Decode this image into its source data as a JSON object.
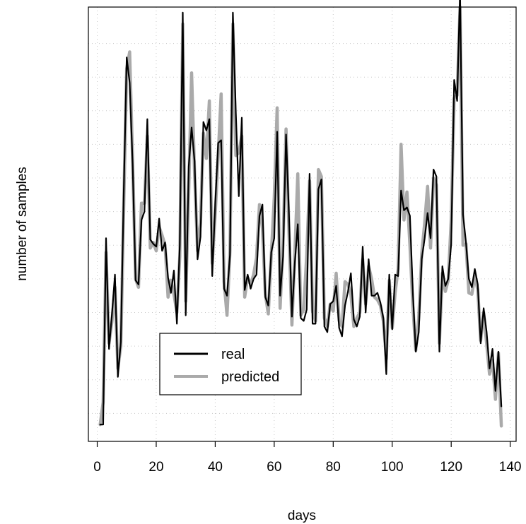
{
  "chart_data": {
    "type": "line",
    "title": "",
    "xlabel": "days",
    "ylabel": "number of samples",
    "xlim": [
      -3,
      142
    ],
    "ylim": [
      -1,
      30
    ],
    "xticks": [
      0,
      20,
      40,
      60,
      80,
      100,
      120,
      140
    ],
    "xtick_labels": [
      "0",
      "20",
      "40",
      "60",
      "80",
      "100",
      "120",
      "140"
    ],
    "yticks": [],
    "grid": true,
    "legend_position": "bottom-left",
    "series": [
      {
        "name": "real",
        "color": "#000000",
        "x": [
          1,
          2,
          3,
          4,
          5,
          6,
          7,
          8,
          9,
          10,
          11,
          12,
          13,
          14,
          15,
          16,
          17,
          18,
          19,
          20,
          21,
          22,
          23,
          24,
          25,
          26,
          27,
          28,
          29,
          30,
          31,
          32,
          33,
          34,
          35,
          36,
          37,
          38,
          39,
          40,
          41,
          42,
          43,
          44,
          45,
          46,
          47,
          48,
          49,
          50,
          51,
          52,
          53,
          54,
          55,
          56,
          57,
          58,
          59,
          60,
          61,
          62,
          63,
          64,
          65,
          66,
          67,
          68,
          69,
          70,
          71,
          72,
          73,
          74,
          75,
          76,
          77,
          78,
          79,
          80,
          81,
          82,
          83,
          84,
          85,
          86,
          87,
          88,
          89,
          90,
          91,
          92,
          93,
          94,
          95,
          96,
          97,
          98,
          99,
          100,
          101,
          102,
          103,
          104,
          105,
          106,
          107,
          108,
          109,
          110,
          111,
          112,
          113,
          114,
          115,
          116,
          117,
          118,
          119,
          120,
          121,
          122,
          123,
          124,
          125,
          126,
          127,
          128,
          129,
          130,
          131,
          132,
          133,
          134,
          135,
          136,
          137
        ],
        "values": [
          0.2,
          0.2,
          13.5,
          5.6,
          8.1,
          10.9,
          3.6,
          6.1,
          16.9,
          26.4,
          24.6,
          18.8,
          10.5,
          10.2,
          14.8,
          15.4,
          22.0,
          13.4,
          13.1,
          12.9,
          14.9,
          12.6,
          13.2,
          10.7,
          9.6,
          11.2,
          7.4,
          13.0,
          29.6,
          8.0,
          18.6,
          21.4,
          19.0,
          12.0,
          13.6,
          21.8,
          21.2,
          22.0,
          10.8,
          15.9,
          20.3,
          20.5,
          9.9,
          9.4,
          12.3,
          29.6,
          22.4,
          16.5,
          22.1,
          9.8,
          10.9,
          9.9,
          10.6,
          10.9,
          15.1,
          15.9,
          9.3,
          8.7,
          12.5,
          13.5,
          21.1,
          9.4,
          12.2,
          20.9,
          15.2,
          7.9,
          11.8,
          14.5,
          7.8,
          7.6,
          8.4,
          18.1,
          7.4,
          7.4,
          17.0,
          17.7,
          7.2,
          6.8,
          8.8,
          9.0,
          10.1,
          7.1,
          6.5,
          8.7,
          9.7,
          11.0,
          7.7,
          7.2,
          7.9,
          12.9,
          8.2,
          12.0,
          9.4,
          9.4,
          9.6,
          8.9,
          7.8,
          3.8,
          10.9,
          7.0,
          10.9,
          10.8,
          16.9,
          15.5,
          15.7,
          15.1,
          9.6,
          5.4,
          6.8,
          12.0,
          13.5,
          15.3,
          13.5,
          18.4,
          17.9,
          5.4,
          11.5,
          10.1,
          10.6,
          13.1,
          24.8,
          23.3,
          31.2,
          15.2,
          13.2,
          10.6,
          10.0,
          11.3,
          10.2,
          6.0,
          8.5,
          6.8,
          4.2,
          5.6,
          2.6,
          5.4,
          1.5
        ]
      },
      {
        "name": "predicted",
        "color": "#aaaaaa",
        "x": [
          1,
          2,
          3,
          4,
          5,
          6,
          7,
          8,
          9,
          10,
          11,
          12,
          13,
          14,
          15,
          16,
          17,
          18,
          19,
          20,
          21,
          22,
          23,
          24,
          25,
          26,
          27,
          28,
          29,
          30,
          31,
          32,
          33,
          34,
          35,
          36,
          37,
          38,
          39,
          40,
          41,
          42,
          43,
          44,
          45,
          46,
          47,
          48,
          49,
          50,
          51,
          52,
          53,
          54,
          55,
          56,
          57,
          58,
          59,
          60,
          61,
          62,
          63,
          64,
          65,
          66,
          67,
          68,
          69,
          70,
          71,
          72,
          73,
          74,
          75,
          76,
          77,
          78,
          79,
          80,
          81,
          82,
          83,
          84,
          85,
          86,
          87,
          88,
          89,
          90,
          91,
          92,
          93,
          94,
          95,
          96,
          97,
          98,
          99,
          100,
          101,
          102,
          103,
          104,
          105,
          106,
          107,
          108,
          109,
          110,
          111,
          112,
          113,
          114,
          115,
          116,
          117,
          118,
          119,
          120,
          121,
          122,
          123,
          124,
          125,
          126,
          127,
          128,
          129,
          130,
          131,
          132,
          133,
          134,
          135,
          136,
          137
        ],
        "values": [
          0.2,
          1.8,
          12.5,
          6.0,
          7.6,
          10.0,
          4.2,
          5.8,
          16.0,
          25.6,
          26.8,
          19.0,
          10.6,
          10.0,
          16.0,
          16.0,
          20.8,
          12.8,
          13.2,
          12.6,
          14.3,
          13.7,
          13.0,
          9.3,
          10.5,
          9.5,
          8.2,
          12.2,
          28.8,
          9.0,
          16.8,
          25.3,
          18.2,
          12.6,
          14.6,
          21.0,
          19.2,
          23.3,
          11.7,
          15.2,
          19.4,
          23.8,
          10.4,
          8.0,
          12.6,
          28.8,
          19.4,
          19.6,
          20.8,
          9.3,
          10.7,
          10.2,
          10.9,
          12.1,
          15.9,
          14.2,
          9.5,
          8.1,
          12.3,
          16.4,
          22.8,
          8.5,
          13.2,
          21.3,
          14.0,
          7.3,
          12.5,
          18.1,
          8.0,
          8.4,
          12.3,
          17.6,
          8.3,
          7.6,
          18.4,
          17.9,
          7.8,
          7.2,
          8.8,
          8.3,
          11.0,
          7.6,
          7.2,
          10.4,
          10.2,
          9.5,
          7.2,
          7.8,
          8.2,
          12.0,
          8.8,
          11.5,
          10.6,
          9.3,
          9.1,
          8.7,
          7.6,
          4.9,
          10.5,
          7.1,
          9.6,
          11.3,
          20.2,
          14.8,
          16.8,
          13.0,
          8.6,
          5.5,
          7.8,
          12.4,
          14.6,
          17.2,
          12.8,
          17.8,
          17.3,
          6.0,
          11.0,
          9.7,
          10.5,
          14.8,
          23.5,
          23.7,
          30.0,
          13.0,
          13.1,
          9.6,
          9.5,
          10.8,
          9.8,
          6.2,
          8.2,
          6.0,
          3.8,
          4.8,
          2.0,
          5.3,
          0.1
        ]
      }
    ]
  }
}
